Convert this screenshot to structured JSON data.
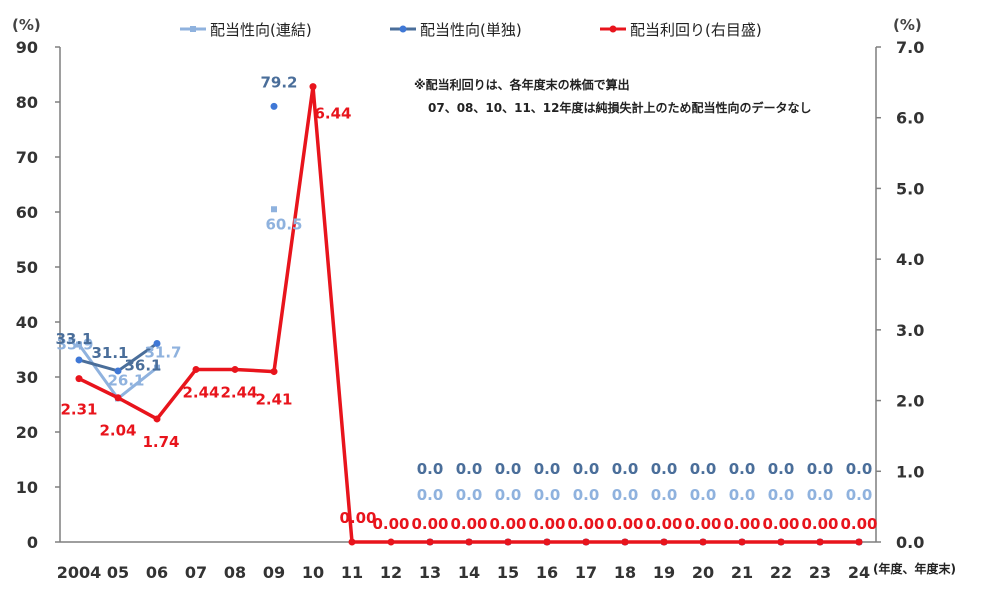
{
  "chart_data": {
    "type": "line",
    "categories": [
      "2004",
      "05",
      "06",
      "07",
      "08",
      "09",
      "10",
      "11",
      "12",
      "13",
      "14",
      "15",
      "16",
      "17",
      "18",
      "19",
      "20",
      "21",
      "22",
      "23",
      "24"
    ],
    "x_unit": "(年度、年度末)",
    "left_axis": {
      "unit": "(%)",
      "ylim": [
        0,
        90
      ],
      "ticks": [
        "0",
        "10",
        "20",
        "30",
        "40",
        "50",
        "60",
        "70",
        "80",
        "90"
      ]
    },
    "right_axis": {
      "unit": "(%)",
      "ylim": [
        0,
        7
      ],
      "ticks": [
        "0.0",
        "1.0",
        "2.0",
        "3.0",
        "4.0",
        "5.0",
        "6.0",
        "7.0"
      ]
    },
    "note": [
      "※配当利回りは、各年度末の株価で算出",
      "07、08、10、11、12年度は純損失計上のため配当性向のデータなし"
    ],
    "series": [
      {
        "name": "配当性向(連結)",
        "axis": "left",
        "color": "#8fb2de",
        "values": [
          35.9,
          26.1,
          31.7,
          null,
          null,
          60.5,
          null,
          null,
          null,
          0.0,
          0.0,
          0.0,
          0.0,
          0.0,
          0.0,
          0.0,
          0.0,
          0.0,
          0.0,
          0.0,
          0.0
        ],
        "labels": [
          "35.9",
          "26.1",
          "31.7",
          "",
          "",
          "60.5",
          "",
          "",
          "",
          "0.0",
          "0.0",
          "0.0",
          "0.0",
          "0.0",
          "0.0",
          "0.0",
          "0.0",
          "0.0",
          "0.0",
          "0.0",
          "0.0"
        ]
      },
      {
        "name": "配当性向(単独)",
        "axis": "left",
        "color": "#4a6e9a",
        "marker_color": "#3f78d6",
        "values": [
          33.1,
          31.1,
          36.1,
          null,
          null,
          79.2,
          null,
          null,
          null,
          0.0,
          0.0,
          0.0,
          0.0,
          0.0,
          0.0,
          0.0,
          0.0,
          0.0,
          0.0,
          0.0,
          0.0
        ],
        "labels": [
          "33.1",
          "31.1",
          "36.1",
          "",
          "",
          "79.2",
          "",
          "",
          "",
          "0.0",
          "0.0",
          "0.0",
          "0.0",
          "0.0",
          "0.0",
          "0.0",
          "0.0",
          "0.0",
          "0.0",
          "0.0",
          "0.0"
        ]
      },
      {
        "name": "配当利回り(右目盛)",
        "axis": "right",
        "color": "#e8141c",
        "values": [
          2.31,
          2.04,
          1.74,
          2.44,
          2.44,
          2.41,
          6.44,
          0.0,
          0.0,
          0.0,
          0.0,
          0.0,
          0.0,
          0.0,
          0.0,
          0.0,
          0.0,
          0.0,
          0.0,
          0.0,
          0.0
        ],
        "labels": [
          "2.31",
          "2.04",
          "1.74",
          "2.44",
          "2.44",
          "2.41",
          "6.44",
          "0.00",
          "0.00",
          "0.00",
          "0.00",
          "0.00",
          "0.00",
          "0.00",
          "0.00",
          "0.00",
          "0.00",
          "0.00",
          "0.00",
          "0.00",
          "0.00"
        ]
      }
    ]
  }
}
